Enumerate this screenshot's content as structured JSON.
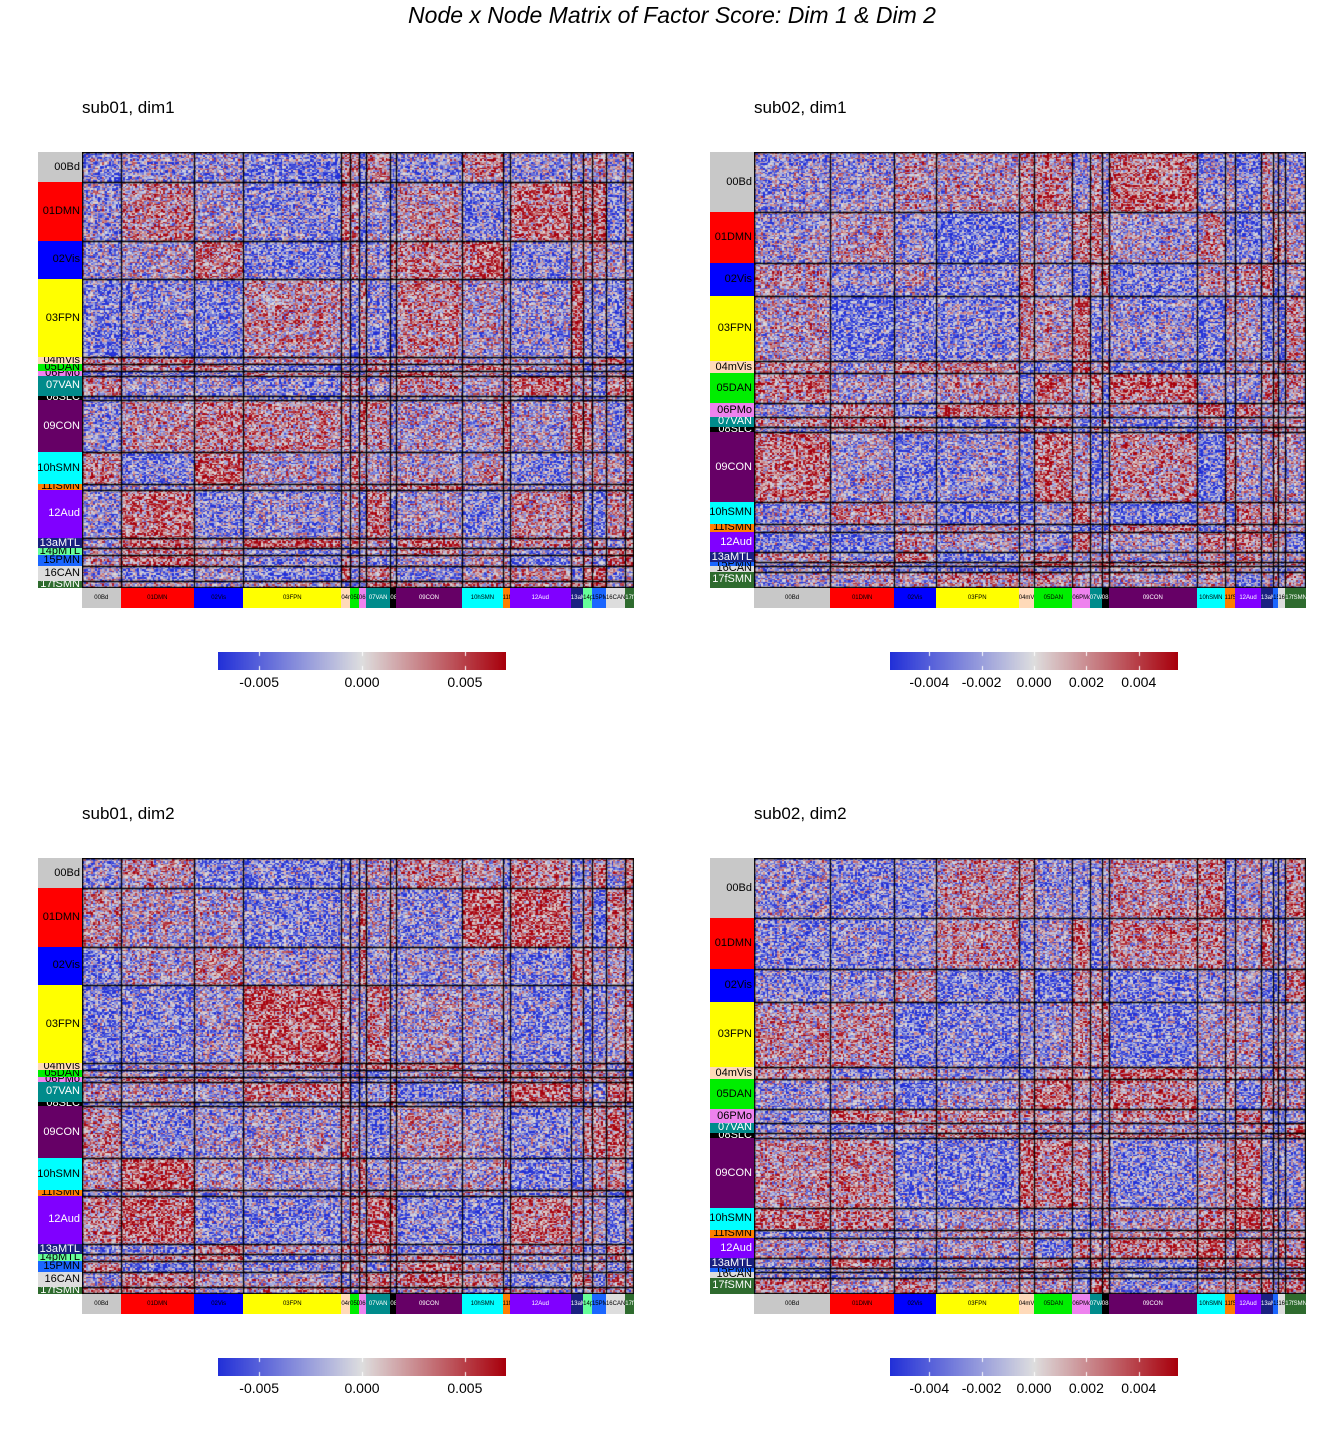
{
  "title": "Node x Node Matrix of Factor Score: Dim 1 & Dim 2",
  "colors": {
    "low": "#2230d8",
    "mid": "#dedede",
    "high": "#a8000c"
  },
  "chart_data": [
    {
      "type": "heatmap",
      "title": "sub01, dim1",
      "communities": [
        {
          "label": "00Bd",
          "size": 22,
          "color": "#c8c8c8",
          "text": "#000000"
        },
        {
          "label": "01DMN",
          "size": 42,
          "color": "#ff0000",
          "text": "#000000"
        },
        {
          "label": "02Vis",
          "size": 28,
          "color": "#0000ff",
          "text": "#000000"
        },
        {
          "label": "03FPN",
          "size": 56,
          "color": "#ffff00",
          "text": "#000000"
        },
        {
          "label": "04mVis",
          "size": 5,
          "color": "#ffdab9",
          "text": "#000000"
        },
        {
          "label": "05DAN",
          "size": 5,
          "color": "#00ee00",
          "text": "#000000"
        },
        {
          "label": "06PMo",
          "size": 4,
          "color": "#ee82ee",
          "text": "#000000"
        },
        {
          "label": "07VAN",
          "size": 14,
          "color": "#008b8b",
          "text": "#ffffff"
        },
        {
          "label": "08SLC",
          "size": 3,
          "color": "#000000",
          "text": "#ffffff"
        },
        {
          "label": "09CON",
          "size": 38,
          "color": "#660066",
          "text": "#ffffff"
        },
        {
          "label": "10hSMN",
          "size": 23,
          "color": "#00ffff",
          "text": "#000000"
        },
        {
          "label": "11fSMN",
          "size": 4,
          "color": "#ff7f00",
          "text": "#000000"
        },
        {
          "label": "12Aud",
          "size": 35,
          "color": "#8000ff",
          "text": "#ffffff"
        },
        {
          "label": "13aMTL",
          "size": 7,
          "color": "#1a2080",
          "text": "#ffffff"
        },
        {
          "label": "14pMTL",
          "size": 5,
          "color": "#66ff99",
          "text": "#000000"
        },
        {
          "label": "15PMN",
          "size": 8,
          "color": "#1a66ff",
          "text": "#000000"
        },
        {
          "label": "16CAN",
          "size": 11,
          "color": "#dddddd",
          "text": "#000000"
        },
        {
          "label": "17fSMN",
          "size": 5,
          "color": "#2e6b2e",
          "text": "#ffffff"
        }
      ],
      "colorbar": {
        "min": -0.007,
        "max": 0.007,
        "ticks": [
          "-0.005",
          "0.000",
          "0.005"
        ],
        "tick_values": [
          -0.005,
          0,
          0.005
        ]
      },
      "seed": 11
    },
    {
      "type": "heatmap",
      "title": "sub02, dim1",
      "communities": [
        {
          "label": "00Bd",
          "size": 44,
          "color": "#c8c8c8",
          "text": "#000000"
        },
        {
          "label": "01DMN",
          "size": 37,
          "color": "#ff0000",
          "text": "#000000"
        },
        {
          "label": "02Vis",
          "size": 24,
          "color": "#0000ff",
          "text": "#000000"
        },
        {
          "label": "03FPN",
          "size": 48,
          "color": "#ffff00",
          "text": "#000000"
        },
        {
          "label": "04mVis",
          "size": 9,
          "color": "#ffdab9",
          "text": "#000000"
        },
        {
          "label": "05DAN",
          "size": 22,
          "color": "#00ee00",
          "text": "#000000"
        },
        {
          "label": "06PMo",
          "size": 10,
          "color": "#ee82ee",
          "text": "#000000"
        },
        {
          "label": "07VAN",
          "size": 7,
          "color": "#008b8b",
          "text": "#ffffff"
        },
        {
          "label": "08SLC",
          "size": 4,
          "color": "#000000",
          "text": "#ffffff"
        },
        {
          "label": "09CON",
          "size": 51,
          "color": "#660066",
          "text": "#ffffff"
        },
        {
          "label": "10hSMN",
          "size": 16,
          "color": "#00ffff",
          "text": "#000000"
        },
        {
          "label": "11fSMN",
          "size": 6,
          "color": "#ff7f00",
          "text": "#000000"
        },
        {
          "label": "12Aud",
          "size": 15,
          "color": "#8000ff",
          "text": "#ffffff"
        },
        {
          "label": "13aMTL",
          "size": 7,
          "color": "#1a2080",
          "text": "#ffffff"
        },
        {
          "label": "15PMN",
          "size": 3,
          "color": "#1a66ff",
          "text": "#000000"
        },
        {
          "label": "16CAN",
          "size": 4,
          "color": "#dddddd",
          "text": "#000000"
        },
        {
          "label": "17fSMN",
          "size": 12,
          "color": "#2e6b2e",
          "text": "#ffffff"
        }
      ],
      "colorbar": {
        "min": -0.0055,
        "max": 0.0055,
        "ticks": [
          "-0.004",
          "-0.002",
          "0.000",
          "0.002",
          "0.004"
        ],
        "tick_values": [
          -0.004,
          -0.002,
          0,
          0.002,
          0.004
        ]
      },
      "seed": 23
    },
    {
      "type": "heatmap",
      "title": "sub01, dim2",
      "communities": [
        {
          "label": "00Bd",
          "size": 22,
          "color": "#c8c8c8",
          "text": "#000000"
        },
        {
          "label": "01DMN",
          "size": 42,
          "color": "#ff0000",
          "text": "#000000"
        },
        {
          "label": "02Vis",
          "size": 28,
          "color": "#0000ff",
          "text": "#000000"
        },
        {
          "label": "03FPN",
          "size": 56,
          "color": "#ffff00",
          "text": "#000000"
        },
        {
          "label": "04mVis",
          "size": 5,
          "color": "#ffdab9",
          "text": "#000000"
        },
        {
          "label": "05DAN",
          "size": 5,
          "color": "#00ee00",
          "text": "#000000"
        },
        {
          "label": "06PMo",
          "size": 4,
          "color": "#ee82ee",
          "text": "#000000"
        },
        {
          "label": "07VAN",
          "size": 14,
          "color": "#008b8b",
          "text": "#ffffff"
        },
        {
          "label": "08SLC",
          "size": 3,
          "color": "#000000",
          "text": "#ffffff"
        },
        {
          "label": "09CON",
          "size": 38,
          "color": "#660066",
          "text": "#ffffff"
        },
        {
          "label": "10hSMN",
          "size": 23,
          "color": "#00ffff",
          "text": "#000000"
        },
        {
          "label": "11fSMN",
          "size": 4,
          "color": "#ff7f00",
          "text": "#000000"
        },
        {
          "label": "12Aud",
          "size": 35,
          "color": "#8000ff",
          "text": "#ffffff"
        },
        {
          "label": "13aMTL",
          "size": 7,
          "color": "#1a2080",
          "text": "#ffffff"
        },
        {
          "label": "14pMTL",
          "size": 5,
          "color": "#66ff99",
          "text": "#000000"
        },
        {
          "label": "15PMN",
          "size": 8,
          "color": "#1a66ff",
          "text": "#000000"
        },
        {
          "label": "16CAN",
          "size": 11,
          "color": "#dddddd",
          "text": "#000000"
        },
        {
          "label": "17fSMN",
          "size": 5,
          "color": "#2e6b2e",
          "text": "#ffffff"
        }
      ],
      "colorbar": {
        "min": -0.007,
        "max": 0.007,
        "ticks": [
          "-0.005",
          "0.000",
          "0.005"
        ],
        "tick_values": [
          -0.005,
          0,
          0.005
        ]
      },
      "seed": 37
    },
    {
      "type": "heatmap",
      "title": "sub02, dim2",
      "communities": [
        {
          "label": "00Bd",
          "size": 44,
          "color": "#c8c8c8",
          "text": "#000000"
        },
        {
          "label": "01DMN",
          "size": 37,
          "color": "#ff0000",
          "text": "#000000"
        },
        {
          "label": "02Vis",
          "size": 24,
          "color": "#0000ff",
          "text": "#000000"
        },
        {
          "label": "03FPN",
          "size": 48,
          "color": "#ffff00",
          "text": "#000000"
        },
        {
          "label": "04mVis",
          "size": 9,
          "color": "#ffdab9",
          "text": "#000000"
        },
        {
          "label": "05DAN",
          "size": 22,
          "color": "#00ee00",
          "text": "#000000"
        },
        {
          "label": "06PMo",
          "size": 10,
          "color": "#ee82ee",
          "text": "#000000"
        },
        {
          "label": "07VAN",
          "size": 7,
          "color": "#008b8b",
          "text": "#ffffff"
        },
        {
          "label": "08SLC",
          "size": 4,
          "color": "#000000",
          "text": "#ffffff"
        },
        {
          "label": "09CON",
          "size": 51,
          "color": "#660066",
          "text": "#ffffff"
        },
        {
          "label": "10hSMN",
          "size": 16,
          "color": "#00ffff",
          "text": "#000000"
        },
        {
          "label": "11fSMN",
          "size": 6,
          "color": "#ff7f00",
          "text": "#000000"
        },
        {
          "label": "12Aud",
          "size": 15,
          "color": "#8000ff",
          "text": "#ffffff"
        },
        {
          "label": "13aMTL",
          "size": 7,
          "color": "#1a2080",
          "text": "#ffffff"
        },
        {
          "label": "15PMN",
          "size": 3,
          "color": "#1a66ff",
          "text": "#000000"
        },
        {
          "label": "16CAN",
          "size": 4,
          "color": "#dddddd",
          "text": "#000000"
        },
        {
          "label": "17fSMN",
          "size": 12,
          "color": "#2e6b2e",
          "text": "#ffffff"
        }
      ],
      "colorbar": {
        "min": -0.0055,
        "max": 0.0055,
        "ticks": [
          "-0.004",
          "-0.002",
          "0.000",
          "0.002",
          "0.004"
        ],
        "tick_values": [
          -0.004,
          -0.002,
          0,
          0.002,
          0.004
        ]
      },
      "seed": 53
    }
  ]
}
